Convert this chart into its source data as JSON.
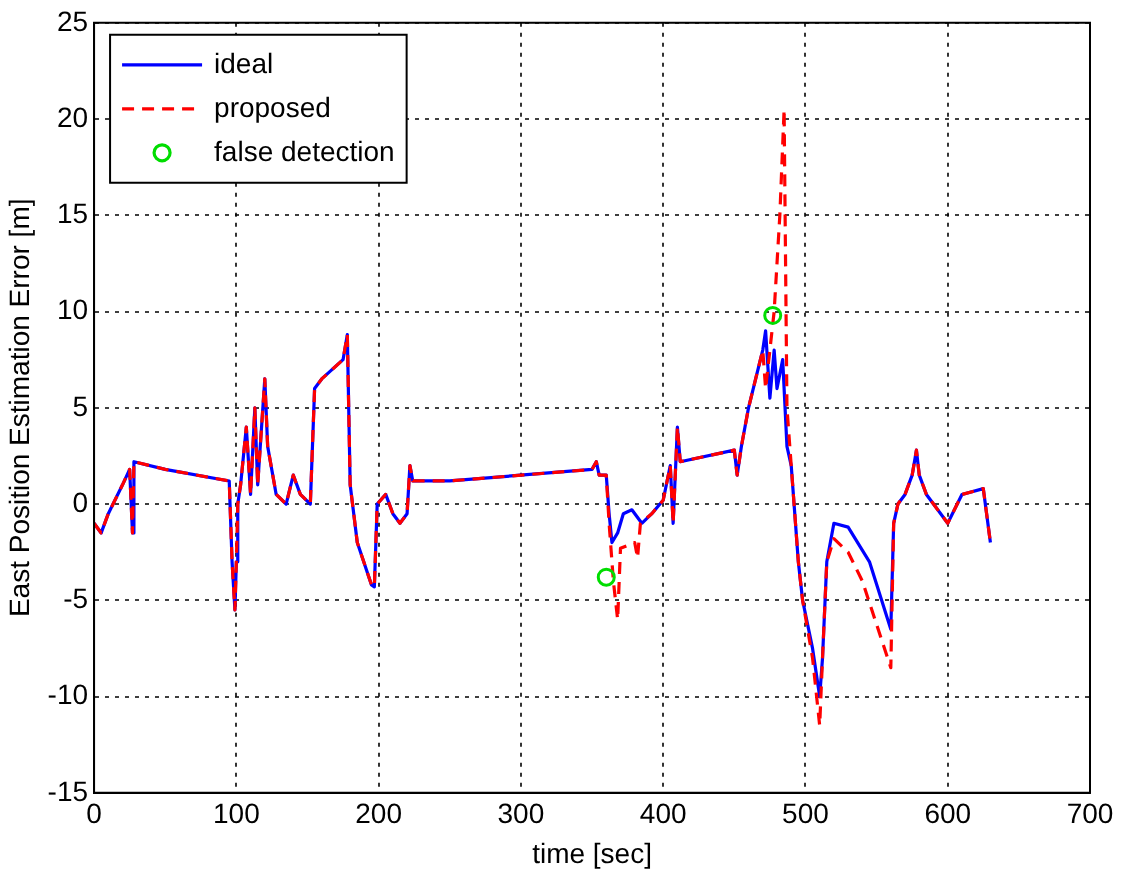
{
  "chart_data": {
    "type": "line",
    "xlabel": "time [sec]",
    "ylabel": "East Position Estimation Error [m]",
    "xlim": [
      0,
      700
    ],
    "xticks": [
      0,
      100,
      200,
      300,
      400,
      500,
      600,
      700
    ],
    "ylim": [
      -15,
      25
    ],
    "yticks": [
      -15,
      -10,
      -5,
      0,
      5,
      10,
      15,
      20,
      25
    ],
    "grid": true,
    "legend": "top left",
    "series": [
      {
        "name": "ideal",
        "color": "#0000ff",
        "line_style": "solid",
        "marker": "none",
        "x": [
          0,
          5,
          10,
          20,
          25,
          27,
          28,
          50,
          95,
          97,
          99,
          100,
          101,
          103,
          107,
          110,
          113,
          115,
          120,
          122,
          128,
          135,
          140,
          145,
          152,
          155,
          160,
          175,
          178,
          180,
          185,
          195,
          197,
          199,
          205,
          210,
          215,
          220,
          222,
          224,
          250,
          350,
          353,
          355,
          360,
          362,
          364,
          368,
          372,
          378,
          385,
          392,
          400,
          405,
          407,
          410,
          412,
          450,
          452,
          455,
          460,
          465,
          470,
          472,
          475,
          478,
          480,
          484,
          487,
          490,
          495,
          498,
          505,
          510,
          512,
          515,
          520,
          530,
          545,
          560,
          562,
          565,
          570,
          575,
          578,
          580,
          585,
          590,
          600,
          610,
          625,
          630
        ],
        "values": [
          -1,
          -1.5,
          -0.5,
          1,
          1.8,
          -1.5,
          2.2,
          1.8,
          1.2,
          -3,
          -5.5,
          -3,
          0,
          1,
          4,
          0.5,
          5,
          1,
          6.5,
          3,
          0.5,
          0,
          1.5,
          0.5,
          0,
          6,
          6.5,
          7.5,
          8.8,
          1,
          -2,
          -4.2,
          -4.3,
          0,
          0.5,
          -0.5,
          -1,
          -0.5,
          2,
          1.2,
          1.2,
          1.8,
          2.2,
          1.5,
          1.5,
          -0.5,
          -2,
          -1.5,
          -0.5,
          -0.3,
          -1,
          -0.5,
          0.2,
          2,
          -1,
          4,
          2.2,
          2.8,
          1.5,
          3,
          5,
          6.5,
          8,
          9,
          5.5,
          8,
          6,
          7.5,
          3,
          2,
          -3,
          -5,
          -7.5,
          -10,
          -8,
          -3,
          -1,
          -1.2,
          -3,
          -6.5,
          -1,
          0,
          0.5,
          1.5,
          2.8,
          1.5,
          0.5,
          0,
          -1,
          0.5,
          0.8,
          -2
        ]
      },
      {
        "name": "proposed",
        "color": "#ff0000",
        "line_style": "dashed",
        "marker": "none",
        "x": [
          0,
          5,
          10,
          20,
          25,
          27,
          28,
          50,
          95,
          97,
          99,
          100,
          101,
          103,
          107,
          110,
          113,
          115,
          120,
          122,
          128,
          135,
          140,
          145,
          152,
          155,
          160,
          175,
          178,
          180,
          185,
          195,
          197,
          199,
          205,
          210,
          215,
          220,
          222,
          224,
          250,
          350,
          353,
          355,
          360,
          362,
          365,
          368,
          370,
          380,
          382,
          384,
          392,
          400,
          405,
          407,
          410,
          412,
          450,
          452,
          455,
          460,
          465,
          470,
          472,
          478,
          482,
          485,
          487,
          490,
          495,
          498,
          505,
          510,
          512,
          515,
          520,
          530,
          540,
          560,
          562,
          565,
          570,
          575,
          578,
          580,
          585,
          590,
          600,
          610,
          625,
          630
        ],
        "values": [
          -1,
          -1.5,
          -0.5,
          1,
          1.8,
          -1.5,
          2.2,
          1.8,
          1.2,
          -3,
          -5.5,
          -3,
          0,
          1,
          4,
          0.5,
          5,
          1,
          6.5,
          3,
          0.5,
          0,
          1.5,
          0.5,
          0,
          6,
          6.5,
          7.5,
          8.8,
          1,
          -2,
          -4.2,
          -4.3,
          0,
          0.5,
          -0.5,
          -1,
          -0.5,
          2,
          1.2,
          1.2,
          1.8,
          2.2,
          1.5,
          1.5,
          -1,
          -4,
          -6,
          -2.3,
          -2,
          -2.8,
          -1,
          -0.5,
          0.2,
          2,
          -1,
          4,
          2.2,
          2.8,
          1.5,
          3,
          5,
          6.5,
          8,
          6,
          10,
          15,
          20.5,
          5,
          2,
          -3,
          -5,
          -8,
          -11.5,
          -8,
          -3,
          -1.8,
          -2.5,
          -4,
          -8.5,
          -1,
          0,
          0.5,
          1.5,
          2.8,
          1.5,
          0.5,
          0,
          -1,
          0.5,
          0.8,
          -2
        ]
      },
      {
        "name": "false detection",
        "type": "scatter",
        "color": "#00dd00",
        "marker": "circle",
        "x": [
          360,
          477
        ],
        "values": [
          -3.8,
          9.8
        ]
      }
    ]
  }
}
